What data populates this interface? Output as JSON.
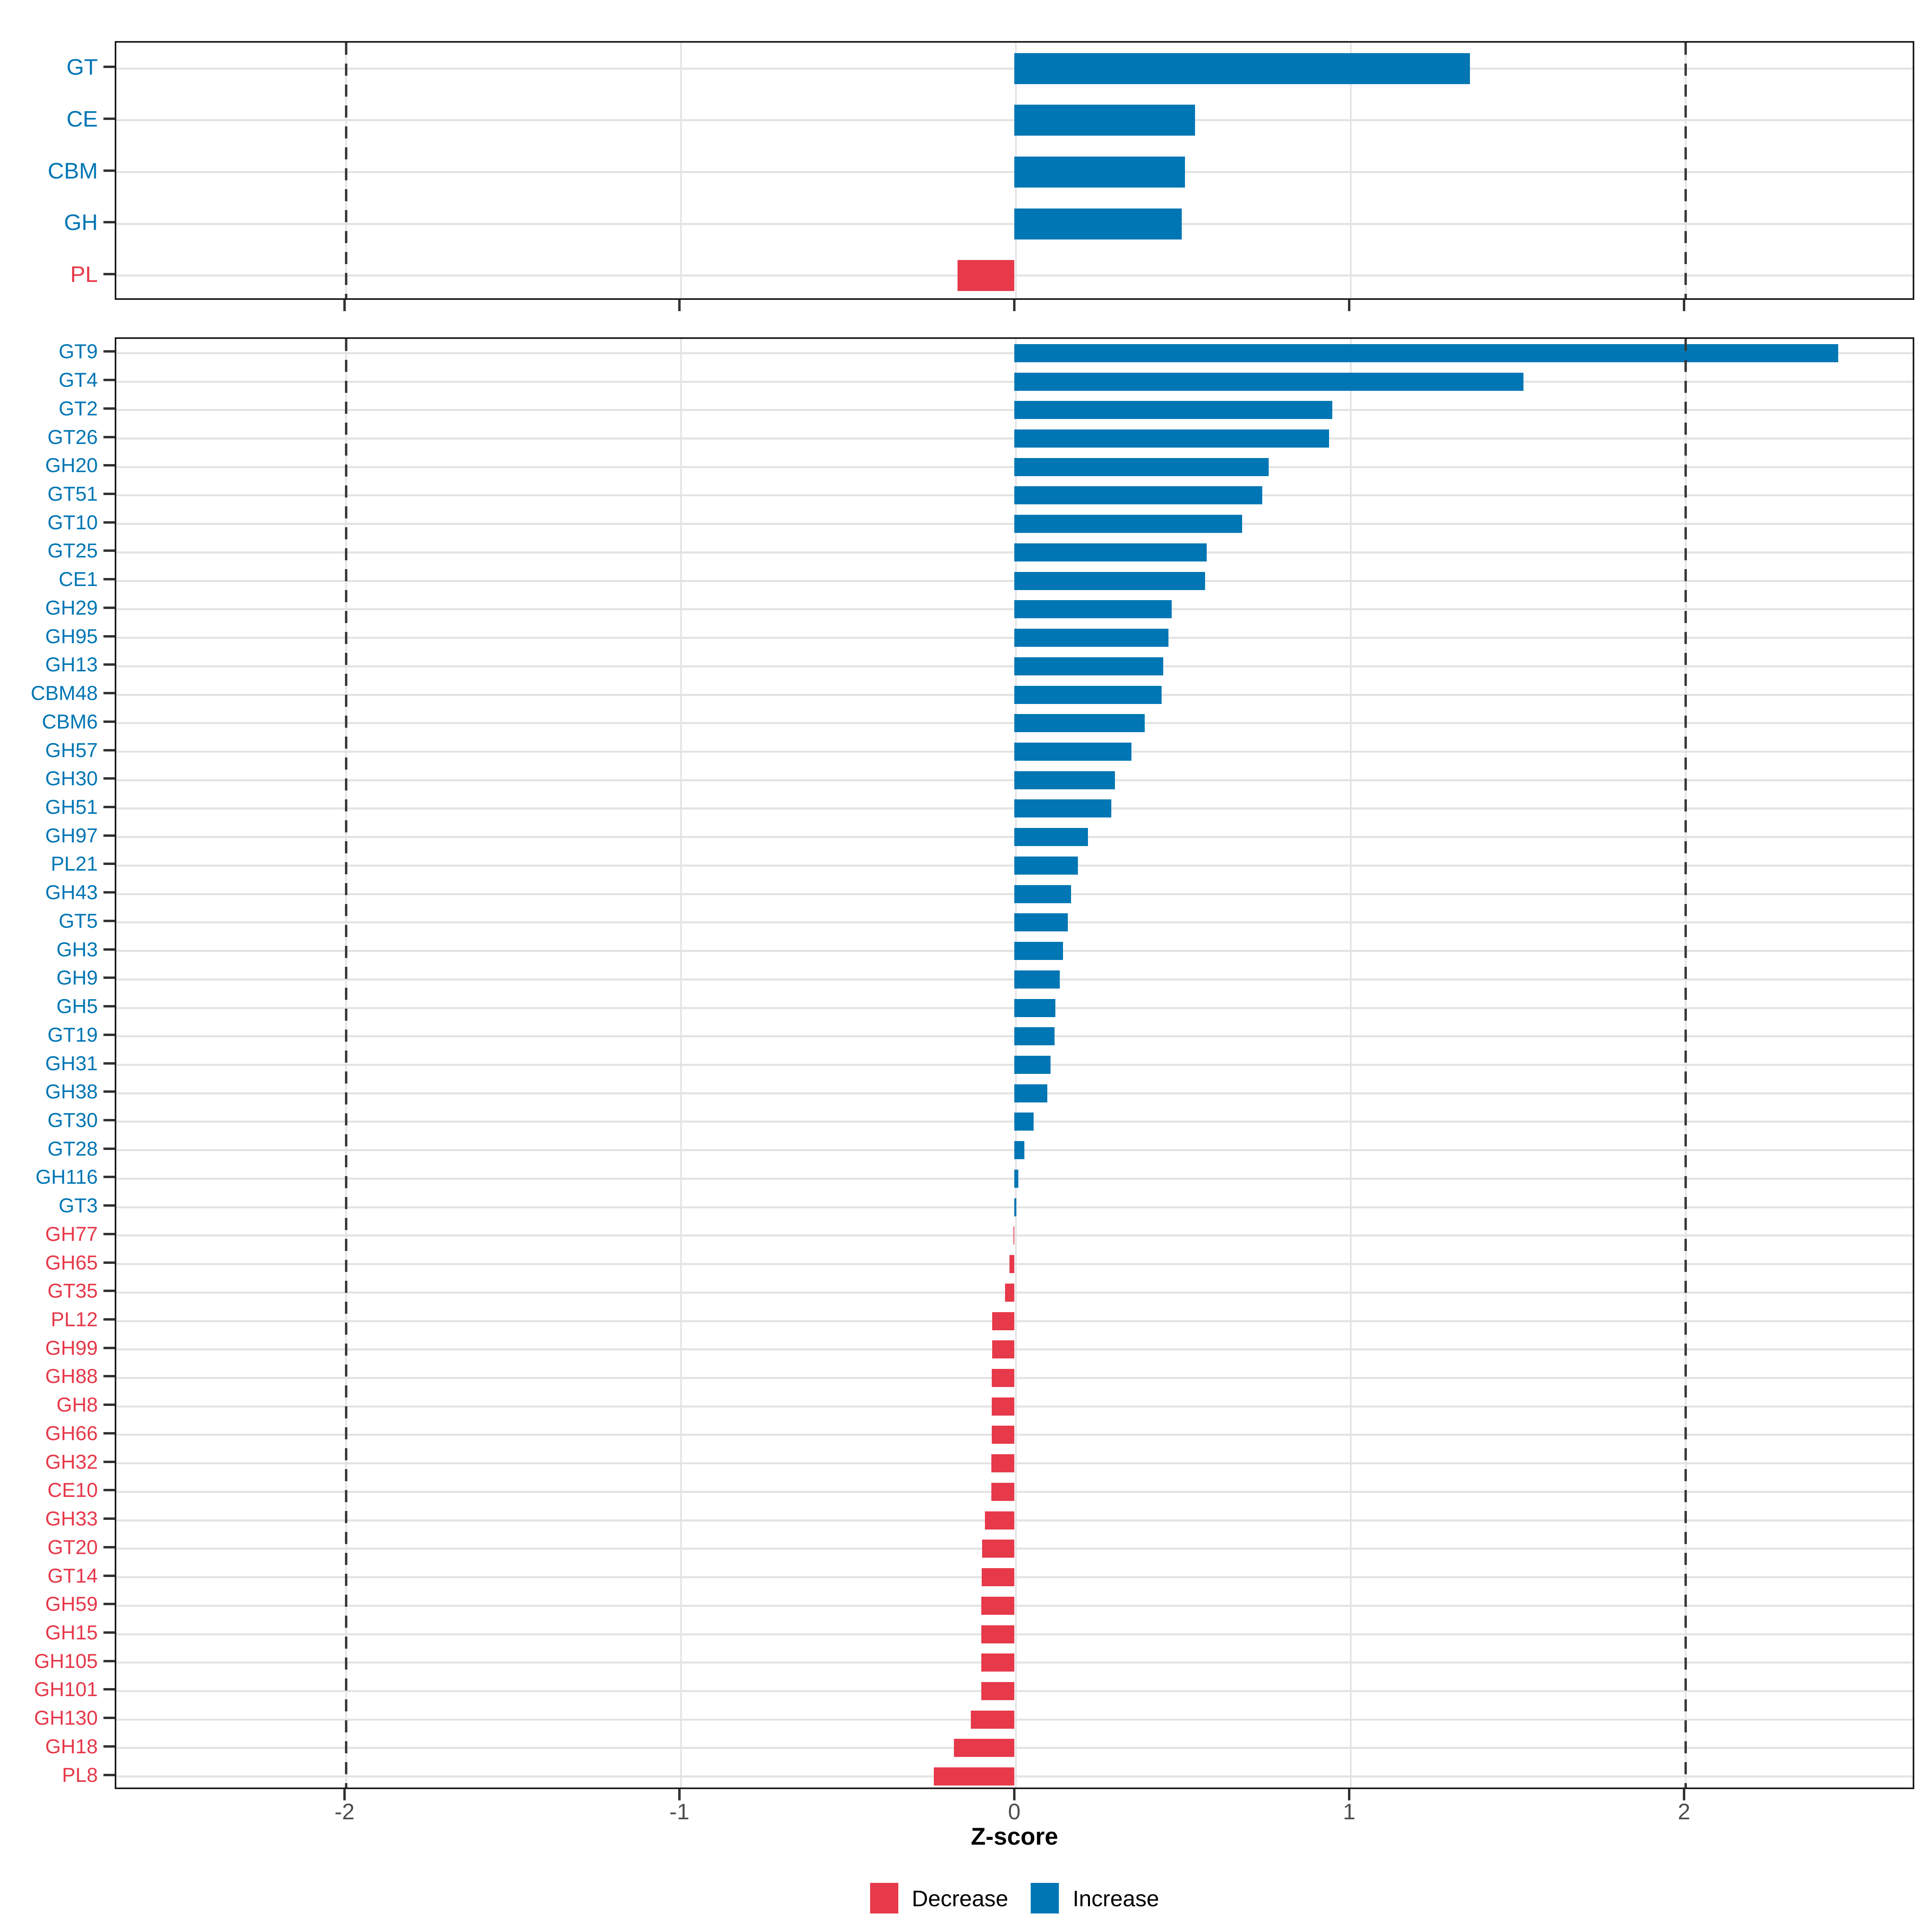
{
  "figure": {
    "xlabel": "Z-score",
    "x_tick_labels": [
      "-2",
      "-1",
      "0",
      "1",
      "2"
    ],
    "x_tick_values": [
      -2,
      -1,
      0,
      1,
      2
    ],
    "xlim": [
      -2.69,
      2.69
    ],
    "dashed_lines": [
      -2,
      2
    ],
    "grid": "on",
    "legend_position": "bottom",
    "colors": {
      "increase": "#0076B4",
      "decrease": "#E6394A",
      "grid_line": "#E3E3E3",
      "dashed_line": "#3A3A3A",
      "axis_text": "#4D4D4D",
      "panel_border": "#1A1A1A"
    },
    "legend": [
      {
        "label": "Decrease",
        "color": "#E6394A"
      },
      {
        "label": "Increase",
        "color": "#0076B4"
      }
    ]
  },
  "chart_data": [
    {
      "type": "bar",
      "orientation": "horizontal",
      "title": "",
      "xlabel": "Z-score",
      "panel": "cazyme-classes",
      "categories": [
        "GT",
        "CE",
        "CBM",
        "GH",
        "PL"
      ],
      "values": [
        1.36,
        0.54,
        0.51,
        0.5,
        -0.17
      ]
    },
    {
      "type": "bar",
      "orientation": "horizontal",
      "title": "",
      "xlabel": "Z-score",
      "panel": "cazyme-families",
      "categories": [
        "GT9",
        "GT4",
        "GT2",
        "GT26",
        "GH20",
        "GT51",
        "GT10",
        "GT25",
        "CE1",
        "GH29",
        "GH95",
        "GH13",
        "CBM48",
        "CBM6",
        "GH57",
        "GH30",
        "GH51",
        "GH97",
        "PL21",
        "GH43",
        "GT5",
        "GH3",
        "GH9",
        "GH5",
        "GT19",
        "GH31",
        "GH38",
        "GT30",
        "GT28",
        "GH116",
        "GT3",
        "GH77",
        "GH65",
        "GT35",
        "PL12",
        "GH99",
        "GH88",
        "GH8",
        "GH66",
        "GH32",
        "CE10",
        "GH33",
        "GT20",
        "GT14",
        "GH59",
        "GH15",
        "GH105",
        "GH101",
        "GH130",
        "GH18",
        "PL8"
      ],
      "values": [
        2.46,
        1.52,
        0.95,
        0.94,
        0.76,
        0.74,
        0.68,
        0.575,
        0.57,
        0.47,
        0.46,
        0.445,
        0.44,
        0.39,
        0.35,
        0.3,
        0.29,
        0.22,
        0.19,
        0.17,
        0.16,
        0.145,
        0.136,
        0.122,
        0.12,
        0.108,
        0.098,
        0.058,
        0.03,
        0.012,
        0.006,
        -0.003,
        -0.015,
        -0.028,
        -0.066,
        -0.066,
        -0.067,
        -0.067,
        -0.067,
        -0.068,
        -0.068,
        -0.088,
        -0.096,
        -0.097,
        -0.098,
        -0.098,
        -0.098,
        -0.098,
        -0.13,
        -0.18,
        -0.24
      ]
    }
  ]
}
